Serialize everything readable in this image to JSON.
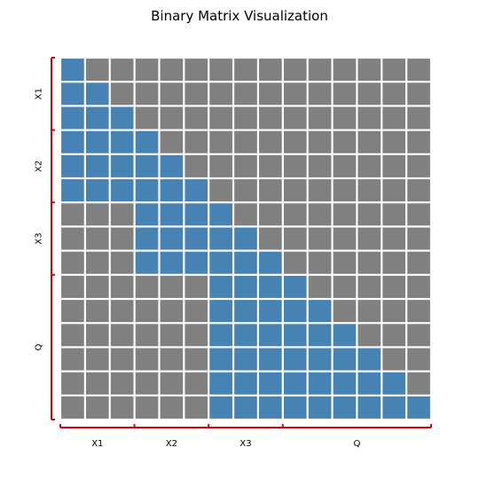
{
  "chart_data": {
    "type": "heatmap",
    "title": "Binary Matrix Visualization",
    "rows": 15,
    "cols": 15,
    "row_groups": [
      {
        "label": "X1",
        "start": 0,
        "end": 2
      },
      {
        "label": "X2",
        "start": 3,
        "end": 5
      },
      {
        "label": "X3",
        "start": 6,
        "end": 8
      },
      {
        "label": "Q",
        "start": 9,
        "end": 14
      }
    ],
    "col_groups": [
      {
        "label": "X1",
        "start": 0,
        "end": 2
      },
      {
        "label": "X2",
        "start": 3,
        "end": 5
      },
      {
        "label": "X3",
        "start": 6,
        "end": 8
      },
      {
        "label": "Q",
        "start": 9,
        "end": 14
      }
    ],
    "matrix": [
      [
        1,
        0,
        0,
        0,
        0,
        0,
        0,
        0,
        0,
        0,
        0,
        0,
        0,
        0,
        0
      ],
      [
        1,
        1,
        0,
        0,
        0,
        0,
        0,
        0,
        0,
        0,
        0,
        0,
        0,
        0,
        0
      ],
      [
        1,
        1,
        1,
        0,
        0,
        0,
        0,
        0,
        0,
        0,
        0,
        0,
        0,
        0,
        0
      ],
      [
        1,
        1,
        1,
        1,
        0,
        0,
        0,
        0,
        0,
        0,
        0,
        0,
        0,
        0,
        0
      ],
      [
        1,
        1,
        1,
        1,
        1,
        0,
        0,
        0,
        0,
        0,
        0,
        0,
        0,
        0,
        0
      ],
      [
        1,
        1,
        1,
        1,
        1,
        1,
        0,
        0,
        0,
        0,
        0,
        0,
        0,
        0,
        0
      ],
      [
        0,
        0,
        0,
        1,
        1,
        1,
        1,
        0,
        0,
        0,
        0,
        0,
        0,
        0,
        0
      ],
      [
        0,
        0,
        0,
        1,
        1,
        1,
        1,
        1,
        0,
        0,
        0,
        0,
        0,
        0,
        0
      ],
      [
        0,
        0,
        0,
        1,
        1,
        1,
        1,
        1,
        1,
        0,
        0,
        0,
        0,
        0,
        0
      ],
      [
        0,
        0,
        0,
        0,
        0,
        0,
        1,
        1,
        1,
        1,
        0,
        0,
        0,
        0,
        0
      ],
      [
        0,
        0,
        0,
        0,
        0,
        0,
        1,
        1,
        1,
        1,
        1,
        0,
        0,
        0,
        0
      ],
      [
        0,
        0,
        0,
        0,
        0,
        0,
        1,
        1,
        1,
        1,
        1,
        1,
        0,
        0,
        0
      ],
      [
        0,
        0,
        0,
        0,
        0,
        0,
        1,
        1,
        1,
        1,
        1,
        1,
        1,
        0,
        0
      ],
      [
        0,
        0,
        0,
        0,
        0,
        0,
        1,
        1,
        1,
        1,
        1,
        1,
        1,
        1,
        0
      ],
      [
        0,
        0,
        0,
        0,
        0,
        0,
        1,
        1,
        1,
        1,
        1,
        1,
        1,
        1,
        1
      ]
    ],
    "colors": {
      "one": "#4682b4",
      "zero": "#808080",
      "bracket": "#dd0000",
      "grid": "#ffffff"
    },
    "grid": false,
    "legend": "none"
  }
}
